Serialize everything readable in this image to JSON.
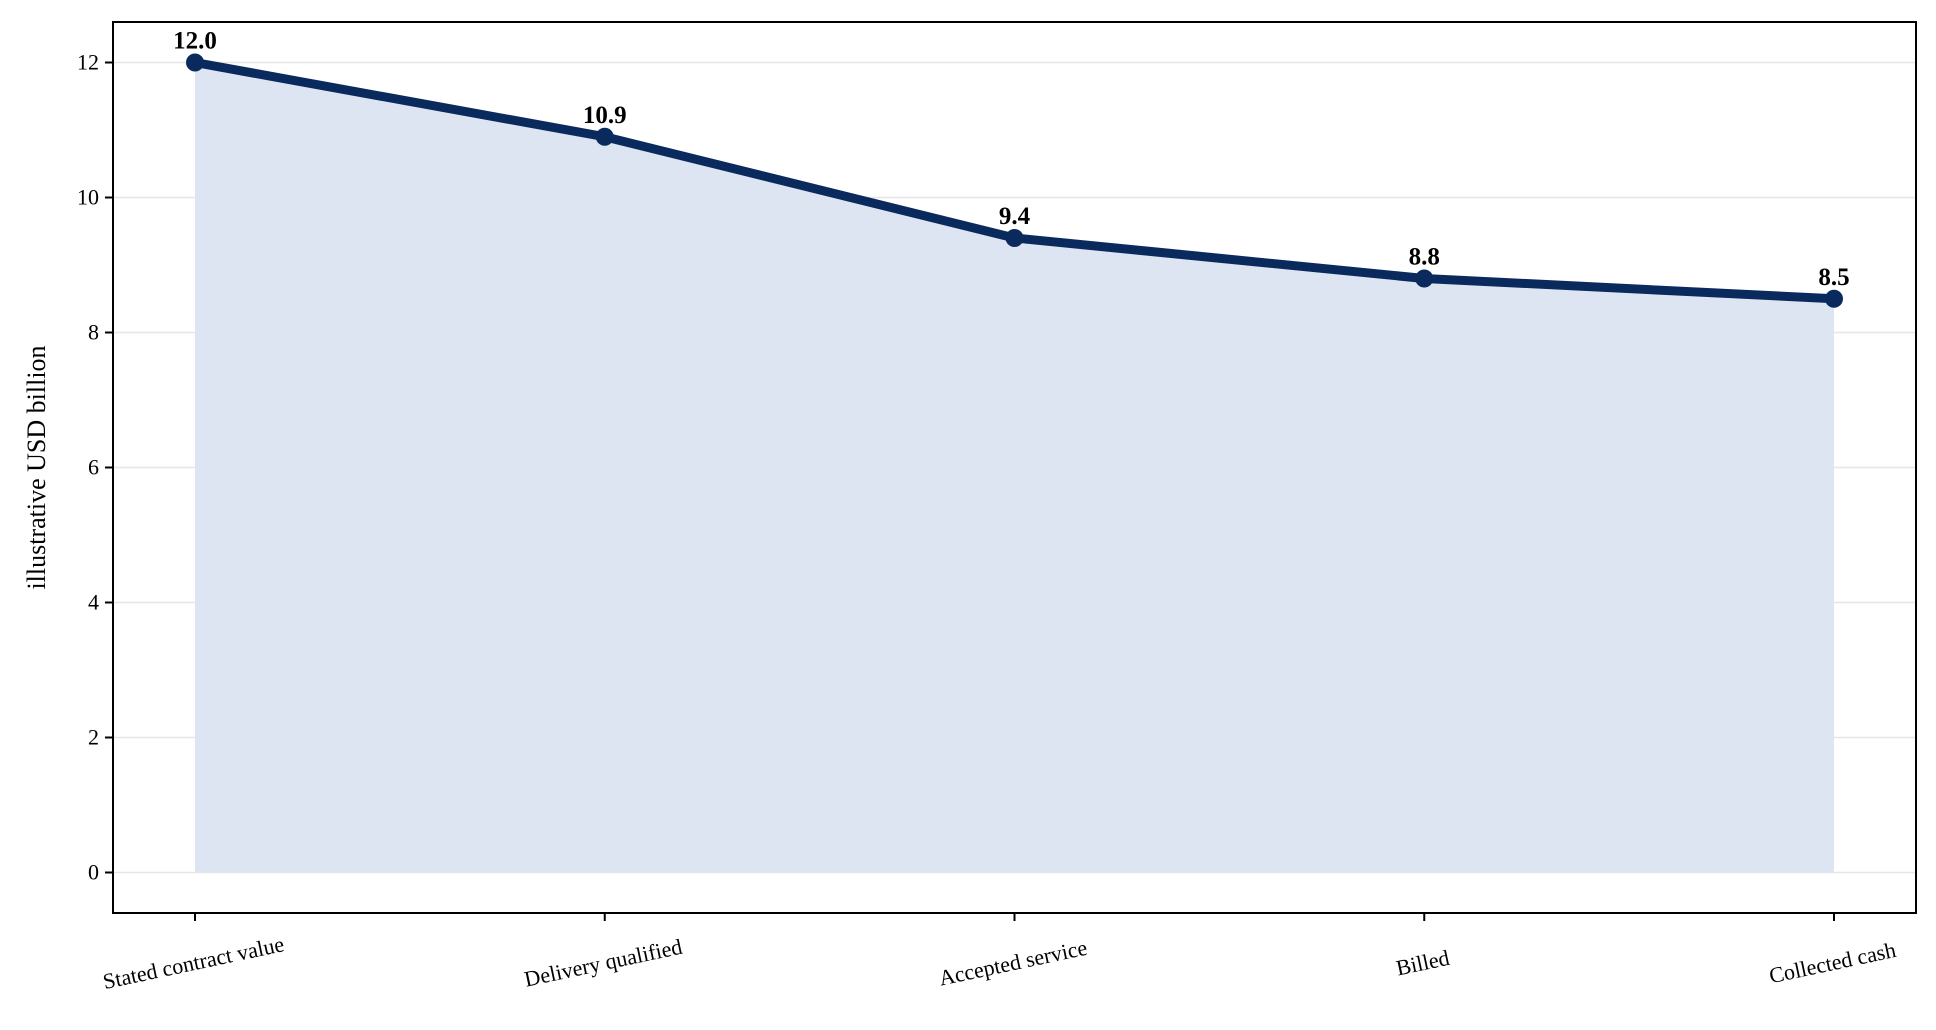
{
  "chart_data": {
    "type": "line",
    "title": "",
    "xlabel": "",
    "ylabel": "illustrative USD billion",
    "categories": [
      "Stated contract value",
      "Delivery qualified",
      "Accepted service",
      "Billed",
      "Collected cash"
    ],
    "values": [
      12.0,
      10.9,
      9.4,
      8.8,
      8.5
    ],
    "data_labels": [
      "12.0",
      "10.9",
      "9.4",
      "8.8",
      "8.5"
    ],
    "yticks": [
      0,
      2,
      4,
      6,
      8,
      10,
      12
    ],
    "ylim": [
      -0.6,
      12.6
    ],
    "grid": "horizontal",
    "area_fill": true,
    "colors": {
      "line": "#0a2a5e",
      "fill": "#dce5f1",
      "grid": "#e6e6e6"
    }
  }
}
